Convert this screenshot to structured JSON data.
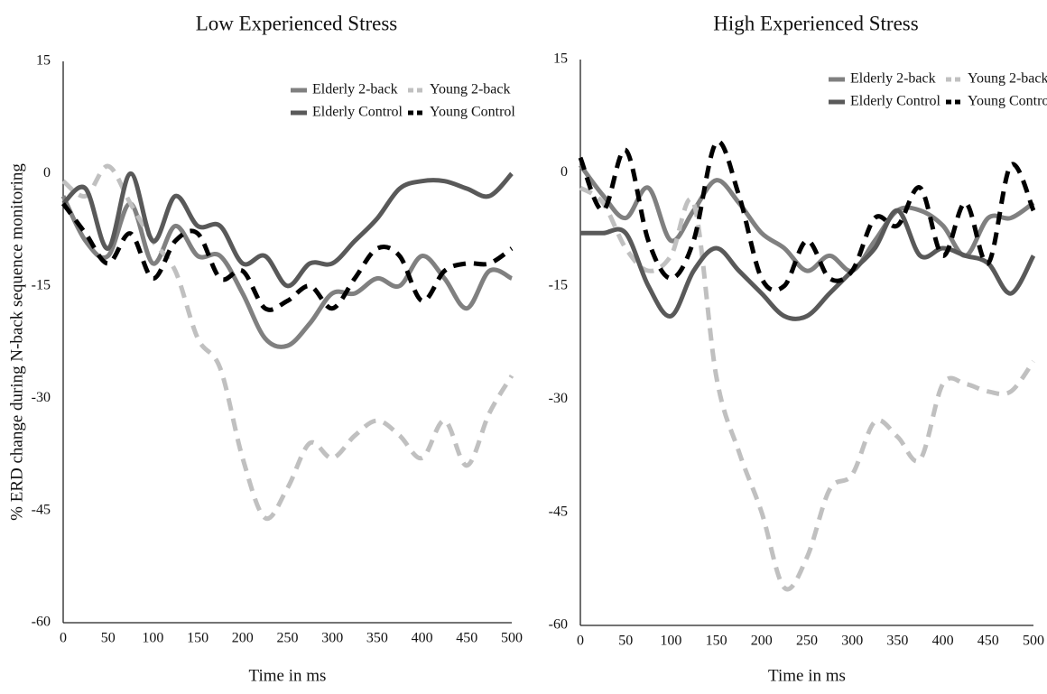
{
  "chart_data": [
    {
      "type": "line",
      "title": "Low Experienced Stress",
      "x_label": "Time in ms",
      "y_label": "% ERD change during N-back sequence monitoring",
      "x": [
        0,
        25,
        50,
        75,
        100,
        125,
        150,
        175,
        200,
        225,
        250,
        275,
        300,
        325,
        350,
        375,
        400,
        425,
        450,
        475,
        500
      ],
      "xlim": [
        0,
        500
      ],
      "ylim": [
        -60,
        15
      ],
      "xticks": [
        0,
        50,
        100,
        150,
        200,
        250,
        300,
        350,
        400,
        450,
        500
      ],
      "yticks": [
        15,
        0,
        -15,
        -30,
        -45,
        -60
      ],
      "grid": false,
      "legend": "top-right",
      "series": [
        {
          "name": "Elderly 2-back",
          "color": "#808080",
          "style": "solid",
          "values": [
            -3,
            -9,
            -11,
            -4,
            -12,
            -7,
            -11,
            -11,
            -16,
            -22,
            -23,
            -20,
            -16,
            -16,
            -14,
            -15,
            -11,
            -14,
            -18,
            -13,
            -14
          ]
        },
        {
          "name": "Young 2-back",
          "color": "#c0c0c0",
          "style": "dashed",
          "values": [
            -1,
            -3,
            1,
            -4,
            -9,
            -13,
            -22,
            -26,
            -38,
            -46,
            -42,
            -36,
            -38,
            -35,
            -33,
            -35,
            -38,
            -33,
            -39,
            -32,
            -27
          ]
        },
        {
          "name": "Elderly Control",
          "color": "#595959",
          "style": "solid",
          "values": [
            -4,
            -2,
            -10,
            0,
            -9,
            -3,
            -7,
            -7,
            -12,
            -11,
            -15,
            -12,
            -12,
            -9,
            -6,
            -2,
            -1,
            -1,
            -2,
            -3,
            0
          ]
        },
        {
          "name": "Young Control",
          "color": "#000000",
          "style": "dashed",
          "values": [
            -4,
            -8,
            -12,
            -8,
            -14,
            -9,
            -8,
            -14,
            -13,
            -18,
            -17,
            -15,
            -18,
            -14,
            -10,
            -11,
            -17,
            -13,
            -12,
            -12,
            -10
          ]
        }
      ]
    },
    {
      "type": "line",
      "title": "High Experienced Stress",
      "x_label": "Time in ms",
      "x": [
        0,
        25,
        50,
        75,
        100,
        125,
        150,
        175,
        200,
        225,
        250,
        275,
        300,
        325,
        350,
        375,
        400,
        425,
        450,
        475,
        500
      ],
      "xlim": [
        0,
        500
      ],
      "ylim": [
        -60,
        15
      ],
      "xticks": [
        0,
        50,
        100,
        150,
        200,
        250,
        300,
        350,
        400,
        450,
        500
      ],
      "yticks": [
        15,
        0,
        -15,
        -30,
        -45,
        -60
      ],
      "grid": false,
      "legend": "top-right",
      "series": [
        {
          "name": "Elderly 2-back",
          "color": "#808080",
          "style": "solid",
          "values": [
            1,
            -3,
            -6,
            -2,
            -9,
            -5,
            -1,
            -4,
            -8,
            -10,
            -13,
            -11,
            -13,
            -9,
            -5,
            -5,
            -7,
            -11,
            -6,
            -6,
            -4
          ]
        },
        {
          "name": "Young 2-back",
          "color": "#c0c0c0",
          "style": "dashed",
          "values": [
            -2,
            -4,
            -10,
            -13,
            -11,
            -4,
            -27,
            -37,
            -45,
            -55,
            -51,
            -42,
            -40,
            -33,
            -35,
            -38,
            -28,
            -28,
            -29,
            -29,
            -25
          ]
        },
        {
          "name": "Elderly Control",
          "color": "#595959",
          "style": "solid",
          "values": [
            -8,
            -8,
            -8,
            -15,
            -19,
            -13,
            -10,
            -13,
            -16,
            -19,
            -19,
            -16,
            -13,
            -10,
            -5,
            -11,
            -10,
            -11,
            -12,
            -16,
            -11
          ]
        },
        {
          "name": "Young Control",
          "color": "#000000",
          "style": "dashed",
          "values": [
            2,
            -5,
            3,
            -9,
            -14,
            -9,
            4,
            -3,
            -14,
            -15,
            -9,
            -14,
            -13,
            -6,
            -7,
            -2,
            -11,
            -4,
            -12,
            1,
            -5
          ]
        }
      ]
    }
  ]
}
